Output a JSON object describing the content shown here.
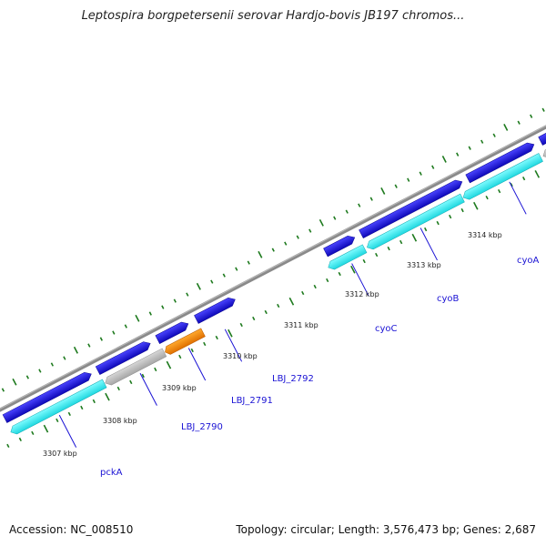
{
  "header": {
    "title": "Leptospira borgpetersenii serovar Hardjo-bovis JB197 chromos..."
  },
  "footer": {
    "accession": "Accession: NC_008510",
    "topology": "Topology: circular; Length: 3,576,473 bp; Genes: 2,687"
  },
  "map": {
    "ruler_labels": [
      "3307 kbp",
      "3308 kbp",
      "3309 kbp",
      "3310 kbp",
      "3311 kbp",
      "3312 kbp",
      "3313 kbp",
      "3314 kbp"
    ],
    "gene_labels": [
      "pckA",
      "LBJ_2790",
      "LBJ_2791",
      "LBJ_2792",
      "cyoC",
      "cyoB",
      "cyoA"
    ],
    "colors": {
      "backbone": "#808080",
      "forward_cds": "#1a12d4",
      "reverse_cds": "#33ffff",
      "gray_cds": "#bdbdbd",
      "orange_cds": "#ff8c00",
      "tick": "#1e7a1e",
      "label": "#1a12d4"
    }
  }
}
